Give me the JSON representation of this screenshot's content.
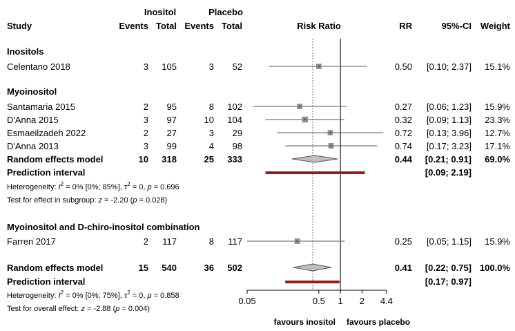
{
  "chart_data": {
    "type": "forest",
    "title": "Risk Ratio",
    "scale": "log",
    "xlim": [
      0.05,
      4.4
    ],
    "xticks": [
      0.05,
      0.5,
      1,
      2,
      4.4
    ],
    "tick_labels": [
      "0.05",
      "0.5",
      "1",
      "2",
      "4.4"
    ],
    "null_value": 1,
    "overall_dashed_value": 0.41,
    "headers": {
      "study": "Study",
      "group1": "Inositol",
      "group2": "Placebo",
      "events": "Events",
      "total": "Total",
      "plot": "Risk Ratio",
      "rr": "RR",
      "ci": "95%-CI",
      "weight": "Weight"
    },
    "x_left_label": "favours inositol",
    "x_right_label": "favours placebo",
    "subgroups": [
      {
        "name": "Inositols",
        "studies": [
          {
            "study": "Celentano 2018",
            "e1": "3",
            "n1": "105",
            "e2": "3",
            "n2": "52",
            "rr": 0.5,
            "lo": 0.1,
            "hi": 2.37,
            "rr_text": "0.50",
            "ci_text": "[0.10; 2.37]",
            "weight_text": "15.1%",
            "weight": 15.1
          }
        ]
      },
      {
        "name": "Myoinositol",
        "studies": [
          {
            "study": "Santamaria 2015",
            "e1": "2",
            "n1": "95",
            "e2": "8",
            "n2": "102",
            "rr": 0.27,
            "lo": 0.06,
            "hi": 1.23,
            "rr_text": "0.27",
            "ci_text": "[0.06; 1.23]",
            "weight_text": "15.9%",
            "weight": 15.9
          },
          {
            "study": "D'Anna 2015",
            "e1": "3",
            "n1": "97",
            "e2": "10",
            "n2": "104",
            "rr": 0.32,
            "lo": 0.09,
            "hi": 1.13,
            "rr_text": "0.32",
            "ci_text": "[0.09; 1.13]",
            "weight_text": "23.3%",
            "weight": 23.3
          },
          {
            "study": "Esmaeilzadeh 2022",
            "e1": "2",
            "n1": "27",
            "e2": "3",
            "n2": "29",
            "rr": 0.72,
            "lo": 0.13,
            "hi": 3.96,
            "rr_text": "0.72",
            "ci_text": "[0.13; 3.96]",
            "weight_text": "12.7%",
            "weight": 12.7
          },
          {
            "study": "D'Anna 2013",
            "e1": "3",
            "n1": "99",
            "e2": "4",
            "n2": "98",
            "rr": 0.74,
            "lo": 0.17,
            "hi": 3.23,
            "rr_text": "0.74",
            "ci_text": "[0.17; 3.23]",
            "weight_text": "17.1%",
            "weight": 17.1
          }
        ],
        "pooled": {
          "label": "Random effects model",
          "e1": "10",
          "n1": "318",
          "e2": "25",
          "n2": "333",
          "rr": 0.44,
          "lo": 0.21,
          "hi": 0.91,
          "rr_text": "0.44",
          "ci_text": "[0.21; 0.91]",
          "weight_text": "69.0%"
        },
        "prediction": {
          "label": "Prediction interval",
          "lo": 0.09,
          "hi": 2.19,
          "ci_text": "[0.09; 2.19]"
        },
        "heterogeneity": {
          "prefix": "Heterogeneity: ",
          "i2_sym": "I",
          "sup2": "2",
          "i2_val": " = 0% [0%; 85%], ",
          "tau_sym": "τ",
          "tau_val": " = 0, ",
          "p_sym": "p",
          "p_val": " = 0.696"
        },
        "subgroup_test": {
          "prefix": "Test for effect in subgroup: ",
          "z_sym": "z",
          "z_val": " = -2.20 (",
          "p_sym": "p",
          "p_val": " = 0.028)"
        }
      },
      {
        "name": "Myoinositol and D-chiro-inositol combination",
        "studies": [
          {
            "study": "Farren 2017",
            "e1": "2",
            "n1": "117",
            "e2": "8",
            "n2": "117",
            "rr": 0.25,
            "lo": 0.05,
            "hi": 1.15,
            "rr_text": "0.25",
            "ci_text": "[0.05; 1.15]",
            "weight_text": "15.9%",
            "weight": 15.9
          }
        ]
      }
    ],
    "overall": {
      "pooled": {
        "label": "Random effects model",
        "e1": "15",
        "n1": "540",
        "e2": "36",
        "n2": "502",
        "rr": 0.41,
        "lo": 0.22,
        "hi": 0.75,
        "rr_text": "0.41",
        "ci_text": "[0.22; 0.75]",
        "weight_text": "100.0%"
      },
      "prediction": {
        "label": "Prediction interval",
        "lo": 0.17,
        "hi": 0.97,
        "ci_text": "[0.17; 0.97]"
      },
      "heterogeneity": {
        "prefix": "Heterogeneity: ",
        "i2_sym": "I",
        "sup2": "2",
        "i2_val": " = 0% [0%; 75%], ",
        "tau_sym": "τ",
        "tau_val": " = 0, ",
        "p_sym": "p",
        "p_val": " = 0.858"
      },
      "overall_test": {
        "prefix": "Test for overall effect: ",
        "z_sym": "z",
        "z_val": " = -2.88 (",
        "p_sym": "p",
        "p_val": " = 0.004)"
      }
    },
    "colors": {
      "text": "#000000",
      "ci_line": "#555555",
      "square": "#8c8c8c",
      "diamond_fill": "#c0c0c0",
      "diamond_stroke": "#555555",
      "prediction": "#a31515",
      "axis": "#000000",
      "dashed": "#777777"
    }
  }
}
